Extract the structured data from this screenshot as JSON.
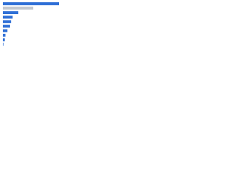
{
  "chart_data": {
    "type": "barh",
    "categories": [
      null,
      null,
      null,
      null,
      null,
      null,
      null,
      null,
      null,
      null
    ],
    "values": [
      87,
      47,
      24,
      15,
      13,
      11,
      7,
      4,
      3,
      1
    ],
    "colors": [
      "#2f6fd6",
      "#c3c8d0",
      "#2f6fd6",
      "#2f6fd6",
      "#2f6fd6",
      "#2f6fd6",
      "#2f6fd6",
      "#2f6fd6",
      "#2f6fd6",
      "#2f6fd6"
    ],
    "xlim": [
      0,
      100
    ]
  }
}
